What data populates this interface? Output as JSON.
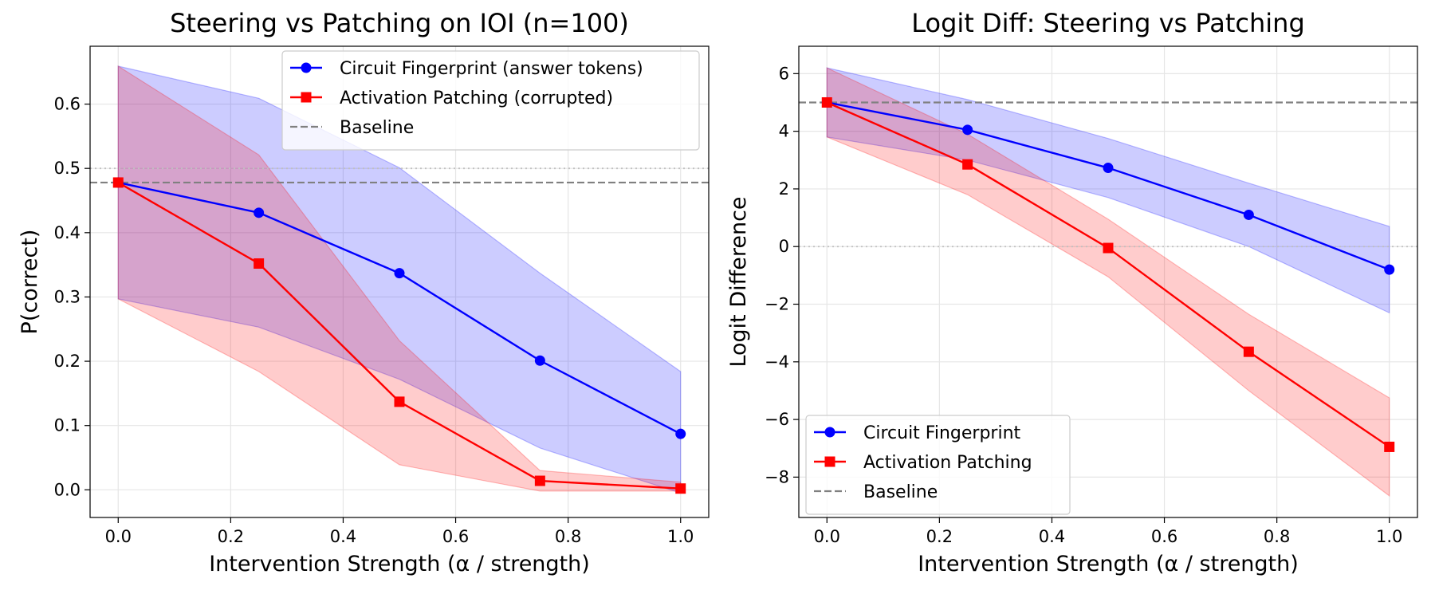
{
  "chart_data": [
    {
      "type": "line",
      "title": "Steering vs Patching on IOI (n=100)",
      "xlabel": "Intervention Strength (α / strength)",
      "ylabel": "P(correct)",
      "xlim": [
        -0.05,
        1.05
      ],
      "ylim": [
        -0.043,
        0.69
      ],
      "xticks": [
        0.0,
        0.2,
        0.4,
        0.6,
        0.8,
        1.0
      ],
      "xtick_labels": [
        "0.0",
        "0.2",
        "0.4",
        "0.6",
        "0.8",
        "1.0"
      ],
      "yticks": [
        0.0,
        0.1,
        0.2,
        0.3,
        0.4,
        0.5,
        0.6
      ],
      "ytick_labels": [
        "0.0",
        "0.1",
        "0.2",
        "0.3",
        "0.4",
        "0.5",
        "0.6"
      ],
      "grid": true,
      "legend_location": "upper right",
      "x": [
        0.0,
        0.25,
        0.5,
        0.75,
        1.0
      ],
      "series": [
        {
          "name": "Circuit Fingerprint (answer tokens)",
          "color": "#0000ff",
          "marker": "circle",
          "values": [
            0.478,
            0.431,
            0.337,
            0.201,
            0.087
          ],
          "band_lower": [
            0.297,
            0.253,
            0.172,
            0.065,
            -0.005
          ],
          "band_upper": [
            0.659,
            0.609,
            0.501,
            0.337,
            0.184
          ],
          "band_color": "#0000ff"
        },
        {
          "name": "Activation Patching (corrupted)",
          "color": "#ff0000",
          "marker": "square",
          "values": [
            0.478,
            0.352,
            0.137,
            0.014,
            0.002
          ],
          "band_lower": [
            0.297,
            0.184,
            0.039,
            -0.002,
            -0.002
          ],
          "band_upper": [
            0.659,
            0.521,
            0.232,
            0.03,
            0.012
          ],
          "band_color": "#ff0000"
        }
      ],
      "baseline": {
        "name": "Baseline",
        "value": 0.478,
        "color": "#808080"
      },
      "reference_line": {
        "value": 0.5,
        "color": "#c0c0c0"
      }
    },
    {
      "type": "line",
      "title": "Logit Diff: Steering vs Patching",
      "xlabel": "Intervention Strength (α / strength)",
      "ylabel": "Logit Difference",
      "xlim": [
        -0.05,
        1.05
      ],
      "ylim": [
        -9.4,
        6.95
      ],
      "xticks": [
        0.0,
        0.2,
        0.4,
        0.6,
        0.8,
        1.0
      ],
      "xtick_labels": [
        "0.0",
        "0.2",
        "0.4",
        "0.6",
        "0.8",
        "1.0"
      ],
      "yticks": [
        -8,
        -6,
        -4,
        -2,
        0,
        2,
        4,
        6
      ],
      "ytick_labels": [
        "−8",
        "−6",
        "−4",
        "−2",
        "0",
        "2",
        "4",
        "6"
      ],
      "grid": true,
      "legend_location": "lower left",
      "x": [
        0.0,
        0.25,
        0.5,
        0.75,
        1.0
      ],
      "series": [
        {
          "name": "Circuit Fingerprint",
          "color": "#0000ff",
          "marker": "circle",
          "values": [
            5.0,
            4.05,
            2.73,
            1.1,
            -0.8
          ],
          "band_lower": [
            3.8,
            3.0,
            1.7,
            0.0,
            -2.3
          ],
          "band_upper": [
            6.2,
            5.1,
            3.75,
            2.2,
            0.7
          ],
          "band_color": "#0000ff"
        },
        {
          "name": "Activation Patching",
          "color": "#ff0000",
          "marker": "square",
          "values": [
            5.0,
            2.85,
            -0.05,
            -3.65,
            -6.95
          ],
          "band_lower": [
            3.8,
            1.8,
            -1.05,
            -5.0,
            -8.65
          ],
          "band_upper": [
            6.2,
            3.9,
            0.95,
            -2.35,
            -5.25
          ],
          "band_color": "#ff0000"
        }
      ],
      "baseline": {
        "name": "Baseline",
        "value": 5.0,
        "color": "#808080"
      },
      "reference_line": {
        "value": 0.0,
        "color": "#c0c0c0"
      }
    }
  ]
}
